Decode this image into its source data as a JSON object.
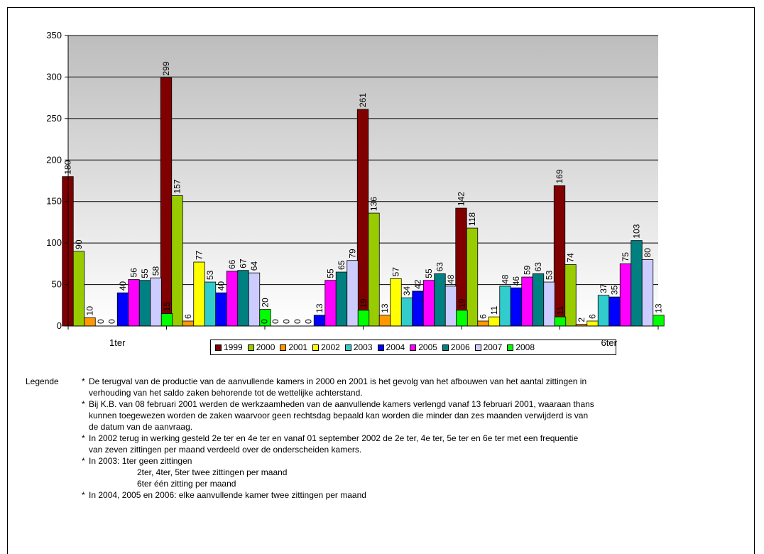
{
  "chart_data": {
    "type": "bar",
    "title": "",
    "xlabel": "",
    "ylabel": "",
    "ylim": [
      0,
      350
    ],
    "yticks": [
      0,
      50,
      100,
      150,
      200,
      250,
      300,
      350
    ],
    "grid": true,
    "legend_position": "bottom",
    "categories": [
      "1ter",
      "",
      "",
      "",
      "",
      "6ter"
    ],
    "series": [
      {
        "name": "1999",
        "color": "#800000",
        "values": [
          180,
          299,
          0,
          261,
          142,
          169
        ]
      },
      {
        "name": "2000",
        "color": "#99cc00",
        "values": [
          90,
          157,
          0,
          136,
          118,
          74
        ]
      },
      {
        "name": "2001",
        "color": "#ff9900",
        "values": [
          10,
          6,
          0,
          13,
          6,
          2
        ]
      },
      {
        "name": "2002",
        "color": "#ffff00",
        "values": [
          0,
          77,
          0,
          57,
          11,
          6
        ]
      },
      {
        "name": "2003",
        "color": "#33cccc",
        "values": [
          0,
          53,
          0,
          34,
          48,
          37
        ]
      },
      {
        "name": "2004",
        "color": "#0000ff",
        "values": [
          40,
          40,
          13,
          42,
          46,
          35
        ]
      },
      {
        "name": "2005",
        "color": "#ff00ff",
        "values": [
          56,
          66,
          55,
          55,
          59,
          75
        ]
      },
      {
        "name": "2006",
        "color": "#008080",
        "values": [
          55,
          67,
          65,
          63,
          63,
          103
        ]
      },
      {
        "name": "2007",
        "color": "#ccccff",
        "values": [
          58,
          64,
          79,
          48,
          53,
          80
        ]
      },
      {
        "name": "2008",
        "color": "#00ff00",
        "values": [
          15,
          20,
          19,
          19,
          11,
          13
        ]
      }
    ]
  },
  "notes": {
    "label": "Legende",
    "items": [
      {
        "lines": [
          "De terugval van de productie van de aanvullende kamers in 2000 en 2001 is het gevolg van het afbouwen van het aantal zittingen in",
          "verhouding van het saldo zaken behorende tot de wettelijke achterstand."
        ]
      },
      {
        "lines": [
          "Bij K.B. van 08 februari 2001 werden de werkzaamheden van de aanvullende kamers verlengd vanaf 13 februari 2001, waaraan thans",
          "kunnen toegewezen worden de zaken waarvoor geen rechtsdag bepaald kan worden die minder dan zes maanden verwijderd is van",
          "de datum van de aanvraag."
        ]
      },
      {
        "lines": [
          "In 2002 terug in werking gesteld 2e ter en 4e ter en vanaf 01 september 2002 de 2e ter, 4e ter, 5e ter en 6e ter met een frequentie",
          "van zeven zittingen per maand verdeeld over de onderscheiden kamers."
        ]
      },
      {
        "lines": [
          "In 2003:   1ter geen zittingen",
          "2ter, 4ter, 5ter twee zittingen per maand",
          "6ter één zitting per maand"
        ]
      },
      {
        "lines": [
          "In 2004, 2005 en 2006: elke aanvullende kamer twee zittingen per maand"
        ]
      }
    ]
  }
}
